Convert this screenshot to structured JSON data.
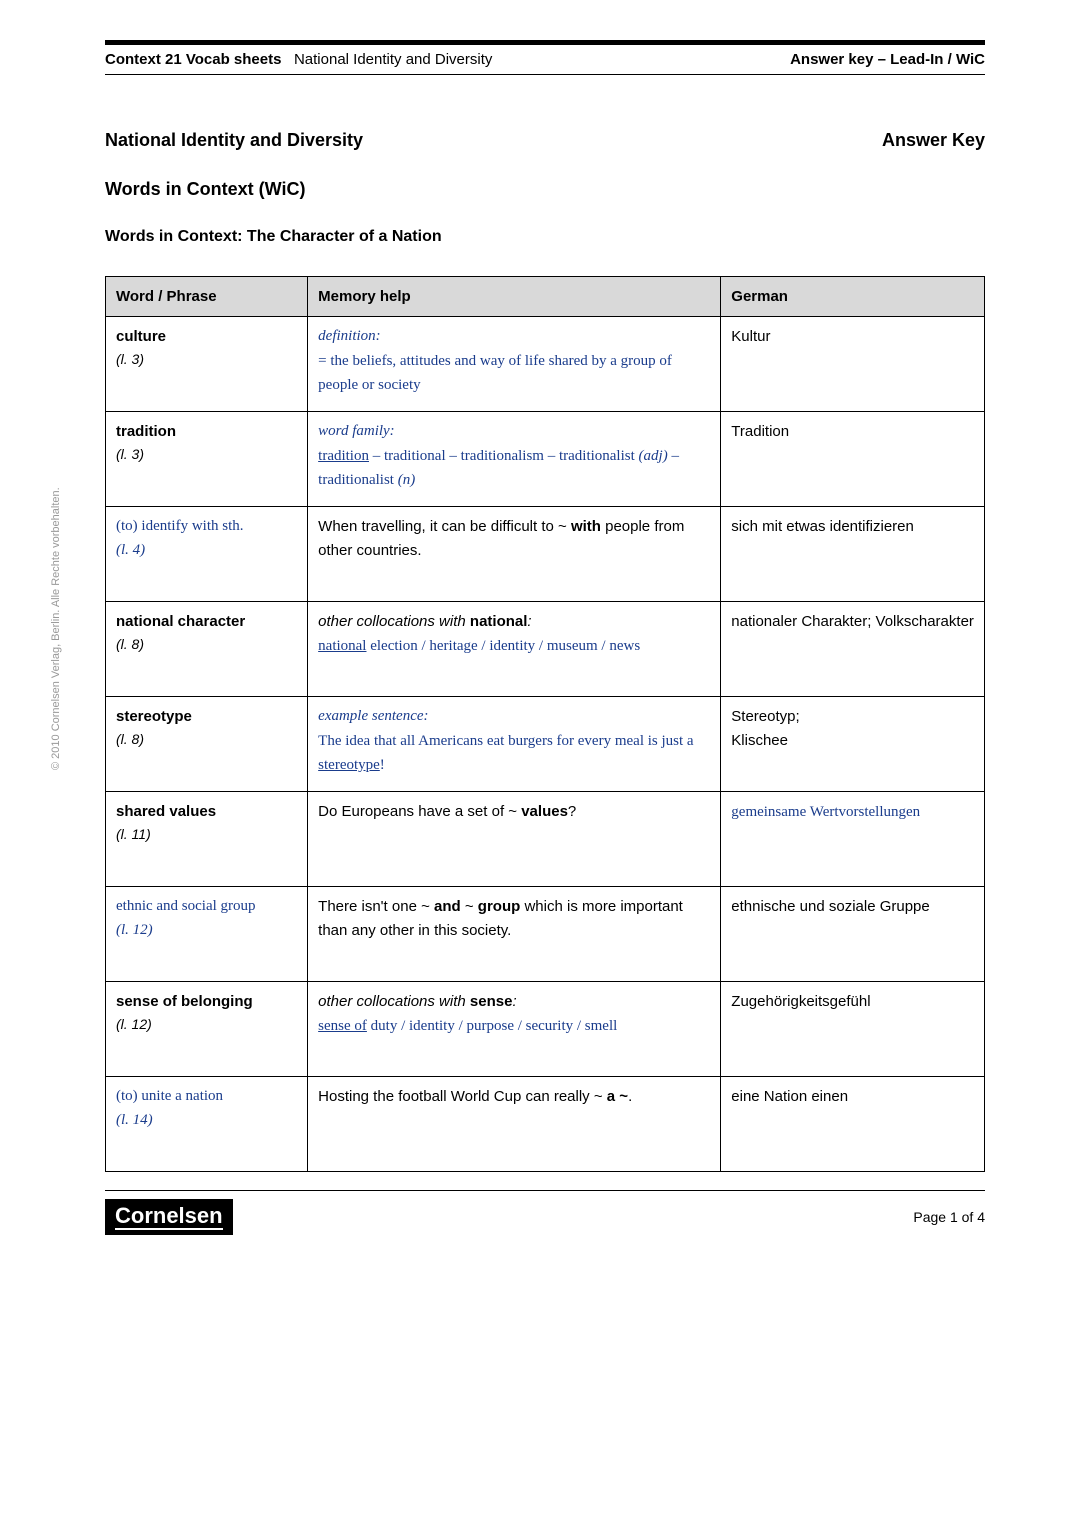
{
  "header": {
    "series": "Context 21 Vocab sheets",
    "topic": "National Identity and Diversity",
    "right": "Answer key – Lead-In / WiC"
  },
  "title_left": "National Identity and Diversity",
  "title_right": "Answer Key",
  "subtitle": "Words in Context (WiC)",
  "section_title": "Words in Context: The Character of a Nation",
  "columns": {
    "word": "Word / Phrase",
    "memory": "Memory help",
    "german": "German"
  },
  "rows": [
    {
      "word": "culture",
      "word_hand": false,
      "line": "(l. 3)",
      "mem_label": "definition:",
      "mem_label_hand": true,
      "mem_body_html": "<span class='hand'>= the beliefs, attitudes and way of life shared by a group of people or society</span>",
      "german_html": "Kultur"
    },
    {
      "word": "tradition",
      "word_hand": false,
      "line": "(l. 3)",
      "mem_label": "word family:",
      "mem_label_hand": true,
      "mem_body_html": "<span class='hand'><span class='u'>tradition</span> – traditional – traditionalism – traditionalist <span class='i'>(adj)</span> – traditionalist <span class='i'>(n)</span></span>",
      "german_html": "Tradition"
    },
    {
      "word": "(to) identify with sth.",
      "word_hand": true,
      "line": "(l. 4)",
      "mem_label": "",
      "mem_body_html": "When travelling, it can be difficult to ~ <b>with</b> people from other countries.",
      "german_html": "sich mit etwas identifizieren"
    },
    {
      "word": "national character",
      "word_hand": false,
      "line": "(l. 8)",
      "mem_label_html": "<span class='i'>other collocations with </span><b>national</b><span class='i'>:</span>",
      "mem_body_html": "<span class='hand'><span class='u'>national</span> election / heritage / identity / museum / news</span>",
      "german_html": "nationaler Charakter; Volkscharakter"
    },
    {
      "word": "stereotype",
      "word_hand": false,
      "line": "(l. 8)",
      "mem_label": "example sentence:",
      "mem_label_hand": true,
      "mem_body_html": "<span class='hand'>The idea that all Americans eat burgers for every meal is just a <span class='u'>stereotype</span>!</span>",
      "german_html": "Stereotyp;<br>Klischee"
    },
    {
      "word": "shared values",
      "word_hand": false,
      "line": "(l. 11)",
      "mem_label": "",
      "mem_body_html": "Do Europeans have a set of ~ <b>values</b>?",
      "german_html": "<span class='hand'>gemeinsame Wertvorstellungen</span>"
    },
    {
      "word": "ethnic and social group",
      "word_hand": true,
      "line": "(l. 12)",
      "mem_label": "",
      "mem_body_html": "There isn't one ~ <b>and</b> ~ <b>group</b> which is more important than any other in this society.",
      "german_html": "ethnische und soziale Gruppe"
    },
    {
      "word": "sense of belonging",
      "word_hand": false,
      "line": "(l. 12)",
      "mem_label_html": "<span class='i'>other collocations with </span><b>sense</b><span class='i'>:</span>",
      "mem_body_html": "<span class='hand'><span class='u'>sense of</span> duty / identity / purpose / security / smell</span>",
      "german_html": "Zugehörigkeitsgefühl"
    },
    {
      "word": "(to) unite a nation",
      "word_hand": true,
      "line": "(l. 14)",
      "mem_label": "",
      "mem_body_html": "Hosting the football World Cup can really ~ <b>a ~</b>.",
      "german_html": "eine Nation einen"
    }
  ],
  "copyright": "© 2010 Cornelsen Verlag, Berlin. Alle Rechte vorbehalten.",
  "logo": "Cornelsen",
  "page_number": "Page 1 of 4"
}
